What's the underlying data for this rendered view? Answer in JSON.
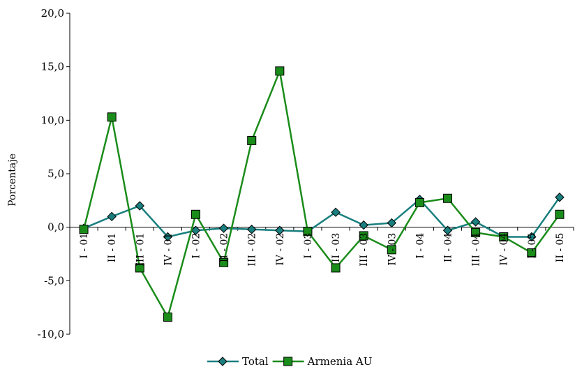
{
  "chart_data": {
    "type": "line",
    "ylabel": "Porcentaje",
    "xlabel": "",
    "ylim": [
      -10,
      20
    ],
    "yticks": [
      "20,0",
      "15,0",
      "10,0",
      "5,0",
      "0,0",
      "-5,0",
      "-10,0"
    ],
    "categories": [
      "I - 01",
      "II - 01",
      "III - 01",
      "IV - 01",
      "I - 02",
      "II - 02",
      "III - 02",
      "IV - 02",
      "I - 03",
      "II - 03",
      "III - 03",
      "IV - 03",
      "I - 04",
      "II - 04",
      "III - 04",
      "IV - 04",
      "I - 05",
      "II - 05"
    ],
    "series": [
      {
        "name": "Total",
        "color": "#1a7f7f",
        "marker": "diamond",
        "values": [
          -0.1,
          1.0,
          2.0,
          -0.9,
          -0.3,
          -0.1,
          -0.2,
          -0.3,
          -0.4,
          1.4,
          0.2,
          0.4,
          2.6,
          -0.3,
          0.5,
          -0.9,
          -0.9,
          2.8
        ]
      },
      {
        "name": "Armenia AU",
        "color": "#1a8c1a",
        "marker": "square",
        "values": [
          -0.2,
          10.3,
          -3.8,
          -8.4,
          1.2,
          -3.3,
          8.1,
          14.6,
          -0.4,
          -3.8,
          -0.8,
          -2.1,
          2.3,
          2.7,
          -0.5,
          -0.9,
          -2.4,
          1.2
        ]
      }
    ],
    "legend": "bottom-center",
    "grid": false
  }
}
